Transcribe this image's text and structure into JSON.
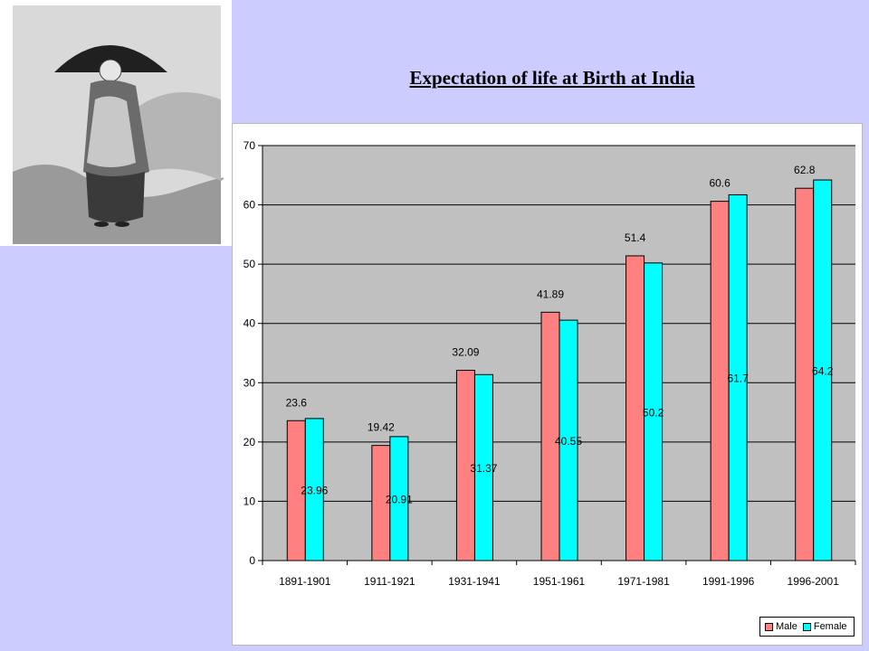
{
  "slide": {
    "title": "Expectation of life at Birth at India"
  },
  "colors": {
    "background": "#ccccff",
    "plot_area": "#c0c0c0",
    "male": "#ff8080",
    "female": "#00ffff"
  },
  "chart_data": {
    "type": "bar",
    "title": "",
    "xlabel": "",
    "ylabel": "",
    "categories": [
      "1891-1901",
      "1911-1921",
      "1931-1941",
      "1951-1961",
      "1971-1981",
      "1991-1996",
      "1996-2001"
    ],
    "series": [
      {
        "name": "Male",
        "color": "#ff8080",
        "values": [
          23.6,
          19.42,
          32.09,
          41.89,
          51.4,
          60.6,
          62.8
        ],
        "labels": [
          "23.6",
          "19.42",
          "32.09",
          "41.89",
          "51.4",
          "60.6",
          "62.8"
        ]
      },
      {
        "name": "Female",
        "color": "#00ffff",
        "values": [
          23.96,
          20.91,
          31.37,
          40.55,
          50.2,
          61.7,
          64.2
        ],
        "labels": [
          "23.96",
          "20.91",
          "31.37",
          "40.55",
          "50.2",
          "61.7",
          "64.2"
        ]
      }
    ],
    "ylim": [
      0,
      70
    ],
    "yticks": [
      "0",
      "10",
      "20",
      "30",
      "40",
      "50",
      "60",
      "70"
    ],
    "grid": true,
    "legend_position": "bottom-right"
  },
  "legend": {
    "male_label": "Male",
    "female_label": "Female"
  }
}
